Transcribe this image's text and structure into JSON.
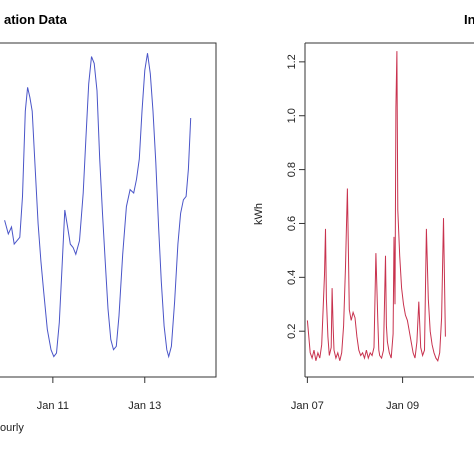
{
  "chart_data": [
    {
      "type": "line",
      "title": "ation Data",
      "xlabel": "",
      "ylabel": "",
      "color": "#4a55c8",
      "x_ticks": [
        {
          "x": 11,
          "label": "Jan 11"
        },
        {
          "x": 13,
          "label": "Jan 13"
        }
      ],
      "xlim": [
        9.85,
        14.55
      ],
      "ylim": [
        0.02,
        1.0
      ],
      "caption": "ourly",
      "series": [
        {
          "x": [
            9.95,
            10.03,
            10.1,
            10.16,
            10.22,
            10.28,
            10.34,
            10.4,
            10.45,
            10.5,
            10.55,
            10.62,
            10.68,
            10.74,
            10.8,
            10.88,
            10.96,
            11.02,
            11.08,
            11.14,
            11.2,
            11.26,
            11.32,
            11.38,
            11.44,
            11.5,
            11.58,
            11.66,
            11.72,
            11.78,
            11.84,
            11.9,
            11.96,
            12.02,
            12.08,
            12.14,
            12.2,
            12.26,
            12.32,
            12.38,
            12.44,
            12.52,
            12.6,
            12.68,
            12.76,
            12.82,
            12.88,
            12.94,
            13.0,
            13.06,
            13.12,
            13.18,
            13.24,
            13.3,
            13.36,
            13.42,
            13.48,
            13.52,
            13.58,
            13.65,
            13.72,
            13.78,
            13.84,
            13.9,
            13.95,
            14.0
          ],
          "y": [
            0.48,
            0.44,
            0.46,
            0.41,
            0.42,
            0.43,
            0.55,
            0.8,
            0.87,
            0.84,
            0.8,
            0.62,
            0.47,
            0.36,
            0.27,
            0.16,
            0.1,
            0.08,
            0.09,
            0.18,
            0.34,
            0.51,
            0.46,
            0.41,
            0.4,
            0.38,
            0.42,
            0.56,
            0.72,
            0.88,
            0.96,
            0.94,
            0.86,
            0.66,
            0.5,
            0.36,
            0.22,
            0.13,
            0.1,
            0.11,
            0.2,
            0.38,
            0.52,
            0.57,
            0.56,
            0.6,
            0.66,
            0.8,
            0.92,
            0.97,
            0.91,
            0.8,
            0.65,
            0.46,
            0.3,
            0.17,
            0.1,
            0.08,
            0.11,
            0.24,
            0.41,
            0.5,
            0.54,
            0.55,
            0.63,
            0.78
          ]
        }
      ]
    },
    {
      "type": "line",
      "title": "In",
      "xlabel": "",
      "ylabel": "kWh",
      "color": "#c8324e",
      "y_ticks": [
        0.2,
        0.4,
        0.6,
        0.8,
        1.0,
        1.2
      ],
      "y_tick_labels": [
        "0.2",
        "0.4",
        "0.6",
        "0.8",
        "1.0",
        "1.2"
      ],
      "x_ticks": [
        {
          "x": 7,
          "label": "Jan 07"
        },
        {
          "x": 9,
          "label": "Jan 09"
        }
      ],
      "xlim": [
        6.95,
        10.5
      ],
      "ylim": [
        0.03,
        1.27
      ],
      "series": [
        {
          "x": [
            7.0,
            7.03,
            7.06,
            7.1,
            7.14,
            7.18,
            7.22,
            7.26,
            7.3,
            7.33,
            7.36,
            7.38,
            7.4,
            7.43,
            7.46,
            7.5,
            7.52,
            7.54,
            7.56,
            7.6,
            7.64,
            7.68,
            7.72,
            7.76,
            7.8,
            7.82,
            7.84,
            7.86,
            7.88,
            7.92,
            7.96,
            8.0,
            8.04,
            8.08,
            8.12,
            8.16,
            8.2,
            8.24,
            8.28,
            8.32,
            8.36,
            8.4,
            8.44,
            8.48,
            8.5,
            8.52,
            8.56,
            8.6,
            8.64,
            8.66,
            8.68,
            8.72,
            8.76,
            8.8,
            8.82,
            8.84,
            8.86,
            8.88,
            8.9,
            8.94,
            8.98,
            9.02,
            9.06,
            9.1,
            9.14,
            9.18,
            9.22,
            9.26,
            9.3,
            9.34,
            9.38,
            9.42,
            9.46,
            9.5,
            9.54,
            9.58,
            9.62,
            9.66,
            9.7,
            9.74,
            9.78,
            9.82,
            9.86,
            9.9
          ],
          "y": [
            0.24,
            0.18,
            0.12,
            0.1,
            0.13,
            0.09,
            0.12,
            0.1,
            0.15,
            0.28,
            0.41,
            0.58,
            0.32,
            0.18,
            0.11,
            0.14,
            0.36,
            0.22,
            0.13,
            0.1,
            0.12,
            0.09,
            0.12,
            0.22,
            0.44,
            0.58,
            0.73,
            0.52,
            0.28,
            0.24,
            0.27,
            0.25,
            0.18,
            0.13,
            0.11,
            0.12,
            0.1,
            0.13,
            0.1,
            0.12,
            0.11,
            0.14,
            0.49,
            0.24,
            0.13,
            0.11,
            0.1,
            0.13,
            0.48,
            0.22,
            0.16,
            0.12,
            0.1,
            0.19,
            0.55,
            0.3,
            1.03,
            1.24,
            0.65,
            0.48,
            0.36,
            0.3,
            0.26,
            0.24,
            0.2,
            0.16,
            0.12,
            0.1,
            0.16,
            0.31,
            0.14,
            0.11,
            0.13,
            0.58,
            0.32,
            0.2,
            0.15,
            0.12,
            0.1,
            0.09,
            0.12,
            0.25,
            0.62,
            0.18
          ]
        }
      ]
    }
  ]
}
